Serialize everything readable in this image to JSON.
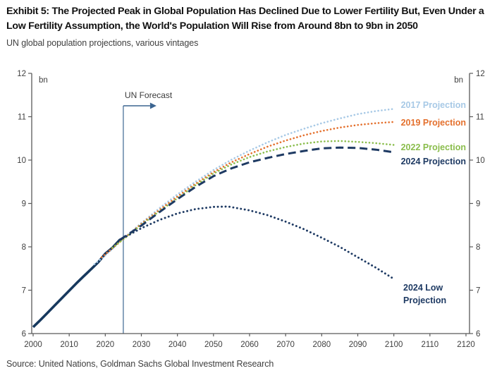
{
  "header": {
    "title": "Exhibit 5: The Projected Peak in Global Population Has Declined Due to Lower Fertility But, Even Under a Low Fertility Assumption, the World's Population Will Rise from Around 8bn to 9bn in 2050",
    "subtitle": "UN global population projections, various vintages"
  },
  "footer": {
    "source": "Source: United Nations, Goldman Sachs Global Investment Research"
  },
  "chart_data": {
    "type": "line",
    "title": "Exhibit 5: The Projected Peak in Global Population Has Declined Due to Lower Fertility But, Even Under a Low Fertility Assumption, the World's Population Will Rise from Around 8bn to 9bn in 2050",
    "subtitle": "UN global population projections, various vintages",
    "unit_label": "bn",
    "x_axis": {
      "range": [
        2000,
        2120
      ],
      "ticks": [
        2000,
        2010,
        2020,
        2030,
        2040,
        2050,
        2060,
        2070,
        2080,
        2090,
        2100,
        2110,
        2120
      ]
    },
    "y_axis": {
      "range": [
        6,
        12
      ],
      "ticks": [
        6,
        7,
        8,
        9,
        10,
        11,
        12
      ],
      "unit": "bn",
      "mirrored_right": true
    },
    "forecast_annotation": {
      "label": "UN Forecast",
      "year": 2025
    },
    "legend_position": "right of line ends, colored text labels",
    "grid": false,
    "colors": {
      "historical": "#17395E",
      "proj_2017": "#A7C9E6",
      "proj_2019": "#E4702D",
      "proj_2022": "#8ABD4C",
      "proj_2024": "#1E3A63",
      "proj_2024_low": "#1E3A63",
      "axis": "#595959",
      "annotation_line": "#3C6591",
      "tick_text": "#404040"
    },
    "series": [
      {
        "id": "historical",
        "label": null,
        "color": "#17395E",
        "line_style": "solid",
        "points": [
          [
            2000,
            6.15
          ],
          [
            2002,
            6.31
          ],
          [
            2004,
            6.48
          ],
          [
            2006,
            6.65
          ],
          [
            2008,
            6.82
          ],
          [
            2010,
            6.99
          ],
          [
            2012,
            7.16
          ],
          [
            2014,
            7.32
          ],
          [
            2016,
            7.48
          ],
          [
            2018,
            7.64
          ],
          [
            2020,
            7.84
          ],
          [
            2022,
            7.98
          ],
          [
            2024,
            8.16
          ],
          [
            2025,
            8.2
          ]
        ]
      },
      {
        "id": "proj-2017",
        "label": "2017 Projection",
        "color": "#A7C9E6",
        "line_style": "dotted",
        "points": [
          [
            2017,
            7.6
          ],
          [
            2020,
            7.8
          ],
          [
            2025,
            8.19
          ],
          [
            2030,
            8.55
          ],
          [
            2035,
            8.89
          ],
          [
            2040,
            9.21
          ],
          [
            2045,
            9.5
          ],
          [
            2050,
            9.77
          ],
          [
            2055,
            10.01
          ],
          [
            2060,
            10.22
          ],
          [
            2065,
            10.41
          ],
          [
            2070,
            10.58
          ],
          [
            2075,
            10.72
          ],
          [
            2080,
            10.85
          ],
          [
            2085,
            10.96
          ],
          [
            2090,
            11.06
          ],
          [
            2095,
            11.13
          ],
          [
            2100,
            11.18
          ]
        ]
      },
      {
        "id": "proj-2019",
        "label": "2019 Projection",
        "color": "#E4702D",
        "line_style": "dotted",
        "points": [
          [
            2019,
            7.76
          ],
          [
            2025,
            8.18
          ],
          [
            2030,
            8.53
          ],
          [
            2035,
            8.85
          ],
          [
            2040,
            9.16
          ],
          [
            2045,
            9.45
          ],
          [
            2050,
            9.72
          ],
          [
            2055,
            9.95
          ],
          [
            2060,
            10.14
          ],
          [
            2065,
            10.31
          ],
          [
            2070,
            10.45
          ],
          [
            2075,
            10.57
          ],
          [
            2080,
            10.67
          ],
          [
            2085,
            10.75
          ],
          [
            2090,
            10.81
          ],
          [
            2095,
            10.85
          ],
          [
            2100,
            10.88
          ]
        ]
      },
      {
        "id": "proj-2022",
        "label": "2022 Projection",
        "color": "#8ABD4C",
        "line_style": "dotted",
        "points": [
          [
            2022,
            7.98
          ],
          [
            2025,
            8.17
          ],
          [
            2030,
            8.51
          ],
          [
            2035,
            8.82
          ],
          [
            2040,
            9.12
          ],
          [
            2045,
            9.42
          ],
          [
            2050,
            9.69
          ],
          [
            2055,
            9.9
          ],
          [
            2060,
            10.07
          ],
          [
            2065,
            10.2
          ],
          [
            2070,
            10.3
          ],
          [
            2075,
            10.38
          ],
          [
            2080,
            10.43
          ],
          [
            2085,
            10.44
          ],
          [
            2090,
            10.42
          ],
          [
            2095,
            10.39
          ],
          [
            2100,
            10.35
          ]
        ]
      },
      {
        "id": "proj-2024",
        "label": "2024 Projection",
        "color": "#1E3A63",
        "line_style": "dashed",
        "points": [
          [
            2024,
            8.16
          ],
          [
            2030,
            8.49
          ],
          [
            2035,
            8.8
          ],
          [
            2040,
            9.1
          ],
          [
            2045,
            9.38
          ],
          [
            2050,
            9.63
          ],
          [
            2055,
            9.81
          ],
          [
            2060,
            9.95
          ],
          [
            2065,
            10.05
          ],
          [
            2070,
            10.14
          ],
          [
            2075,
            10.21
          ],
          [
            2080,
            10.27
          ],
          [
            2085,
            10.29
          ],
          [
            2090,
            10.28
          ],
          [
            2095,
            10.24
          ],
          [
            2100,
            10.18
          ]
        ]
      },
      {
        "id": "proj-2024-low",
        "label": "2024 Low Projection",
        "color": "#1E3A63",
        "line_style": "dotted-large",
        "points": [
          [
            2024,
            8.16
          ],
          [
            2030,
            8.43
          ],
          [
            2035,
            8.62
          ],
          [
            2040,
            8.77
          ],
          [
            2045,
            8.87
          ],
          [
            2050,
            8.92
          ],
          [
            2054,
            8.93
          ],
          [
            2060,
            8.84
          ],
          [
            2065,
            8.73
          ],
          [
            2070,
            8.58
          ],
          [
            2075,
            8.41
          ],
          [
            2080,
            8.21
          ],
          [
            2085,
            8.0
          ],
          [
            2090,
            7.76
          ],
          [
            2095,
            7.52
          ],
          [
            2100,
            7.26
          ]
        ]
      }
    ]
  }
}
